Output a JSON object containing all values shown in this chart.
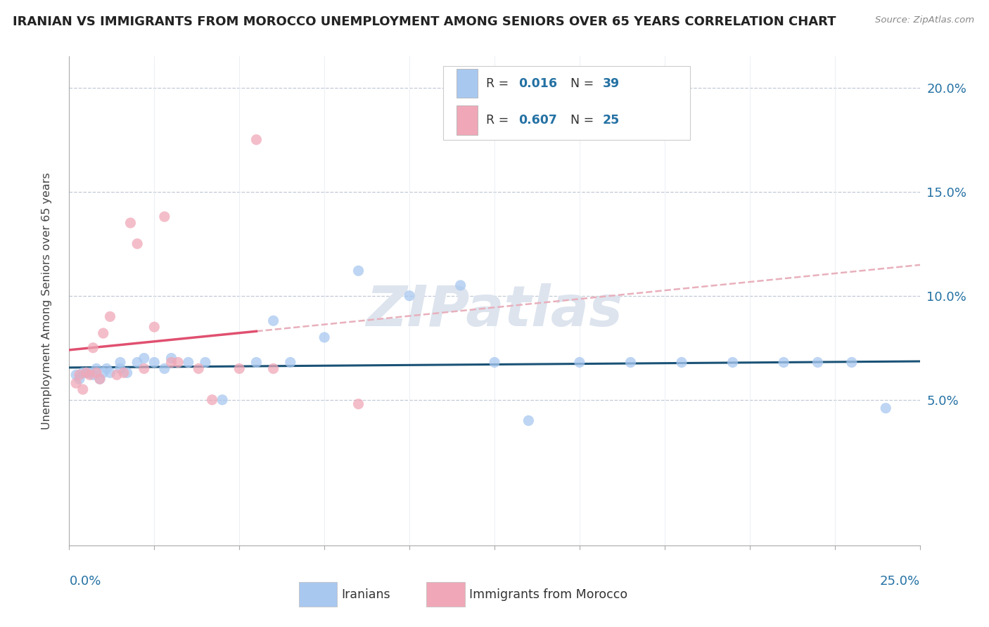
{
  "title": "IRANIAN VS IMMIGRANTS FROM MOROCCO UNEMPLOYMENT AMONG SENIORS OVER 65 YEARS CORRELATION CHART",
  "source": "Source: ZipAtlas.com",
  "ylabel": "Unemployment Among Seniors over 65 years",
  "xmin": 0.0,
  "xmax": 0.25,
  "ymin": -0.02,
  "ymax": 0.215,
  "ytick_values": [
    0.05,
    0.1,
    0.15,
    0.2
  ],
  "ytick_labels": [
    "5.0%",
    "10.0%",
    "15.0%",
    "20.0%"
  ],
  "iranians_x": [
    0.002,
    0.003,
    0.004,
    0.005,
    0.006,
    0.007,
    0.008,
    0.009,
    0.01,
    0.011,
    0.012,
    0.015,
    0.015,
    0.017,
    0.02,
    0.022,
    0.025,
    0.028,
    0.03,
    0.035,
    0.04,
    0.045,
    0.055,
    0.06,
    0.065,
    0.075,
    0.085,
    0.1,
    0.115,
    0.125,
    0.135,
    0.15,
    0.165,
    0.18,
    0.195,
    0.21,
    0.22,
    0.23,
    0.24
  ],
  "iranians_y": [
    0.062,
    0.06,
    0.063,
    0.063,
    0.063,
    0.062,
    0.065,
    0.06,
    0.063,
    0.065,
    0.063,
    0.068,
    0.065,
    0.063,
    0.068,
    0.07,
    0.068,
    0.065,
    0.07,
    0.068,
    0.068,
    0.05,
    0.068,
    0.088,
    0.068,
    0.08,
    0.112,
    0.1,
    0.105,
    0.068,
    0.04,
    0.068,
    0.068,
    0.068,
    0.068,
    0.068,
    0.068,
    0.068,
    0.046
  ],
  "morocco_x": [
    0.002,
    0.003,
    0.004,
    0.005,
    0.006,
    0.007,
    0.008,
    0.009,
    0.01,
    0.012,
    0.014,
    0.016,
    0.018,
    0.02,
    0.022,
    0.025,
    0.028,
    0.03,
    0.032,
    0.038,
    0.042,
    0.05,
    0.055,
    0.06,
    0.085
  ],
  "morocco_y": [
    0.058,
    0.062,
    0.055,
    0.063,
    0.062,
    0.075,
    0.063,
    0.06,
    0.082,
    0.09,
    0.062,
    0.063,
    0.135,
    0.125,
    0.065,
    0.085,
    0.138,
    0.068,
    0.068,
    0.065,
    0.05,
    0.065,
    0.175,
    0.065,
    0.048
  ],
  "scatter_blue": "#a8c8f0",
  "scatter_pink": "#f0a8b8",
  "blue_line_color": "#1a5276",
  "pink_line_color": "#e05070",
  "dashed_line_color": "#e8b0bc",
  "watermark_color": "#dde4ee",
  "title_color": "#222222",
  "axis_color": "#2471a3",
  "label_r1": "R = 0.016",
  "label_n1": "N = 39",
  "label_r2": "R = 0.607",
  "label_n2": "N = 25"
}
